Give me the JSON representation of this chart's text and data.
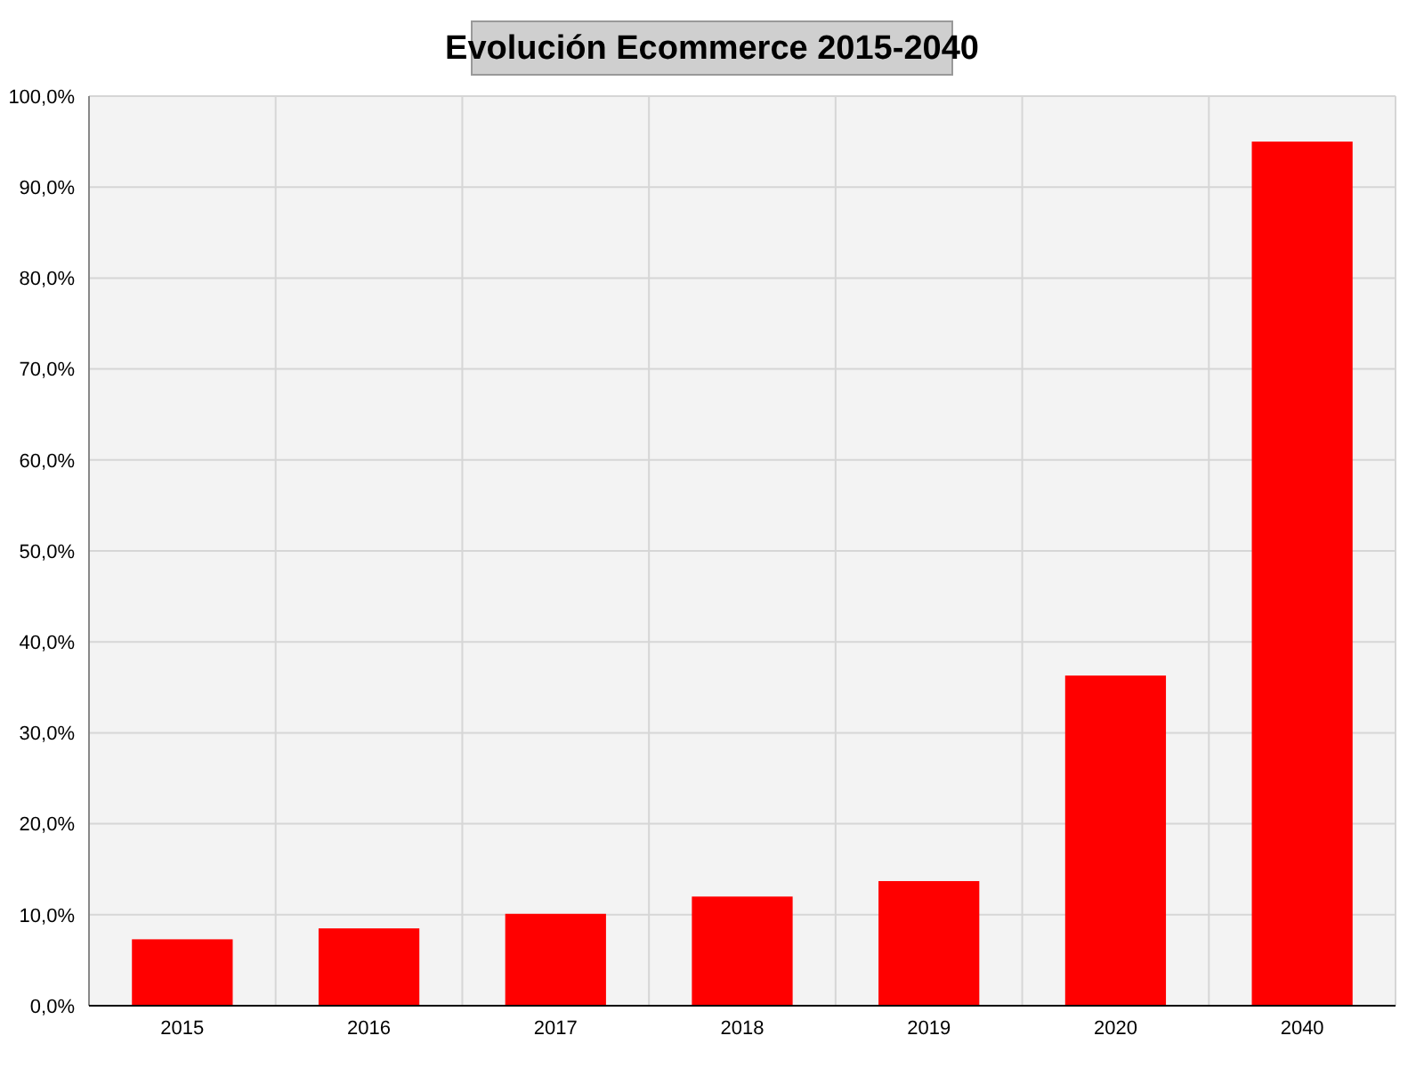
{
  "chart_data": {
    "type": "bar",
    "title": "Evolución Ecommerce 2015-2040",
    "categories": [
      "2015",
      "2016",
      "2017",
      "2018",
      "2019",
      "2020",
      "2040"
    ],
    "values": [
      7.3,
      8.5,
      10.1,
      12.0,
      13.7,
      36.3,
      95.0
    ],
    "color": "#ff0000",
    "ylim": [
      0,
      100
    ],
    "yticks": [
      {
        "value": 0,
        "label": "0,0%"
      },
      {
        "value": 10,
        "label": "10,0%"
      },
      {
        "value": 20,
        "label": "20,0%"
      },
      {
        "value": 30,
        "label": "30,0%"
      },
      {
        "value": 40,
        "label": "40,0%"
      },
      {
        "value": 50,
        "label": "50,0%"
      },
      {
        "value": 60,
        "label": "60,0%"
      },
      {
        "value": 70,
        "label": "70,0%"
      },
      {
        "value": 80,
        "label": "80,0%"
      },
      {
        "value": 90,
        "label": "90,0%"
      },
      {
        "value": 100,
        "label": "100,0%"
      }
    ],
    "grid": true
  }
}
